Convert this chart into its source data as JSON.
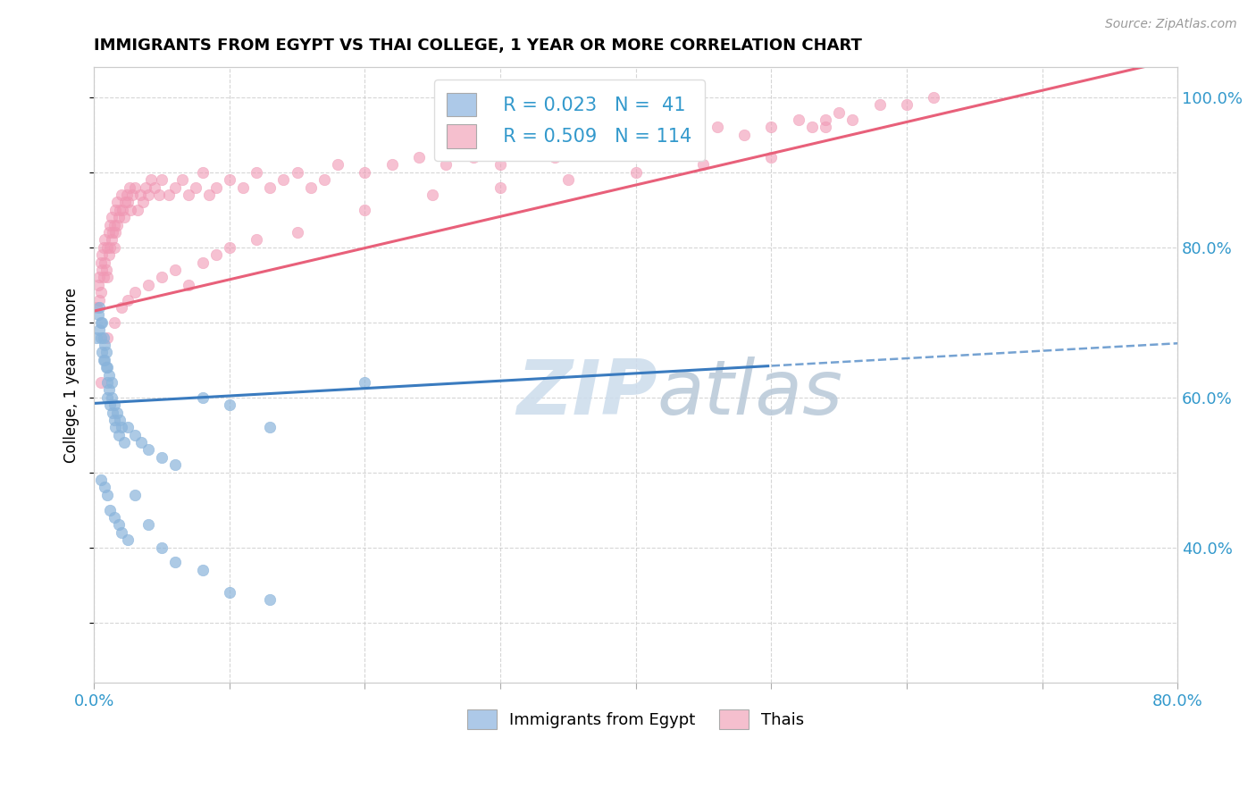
{
  "title": "IMMIGRANTS FROM EGYPT VS THAI COLLEGE, 1 YEAR OR MORE CORRELATION CHART",
  "source_text": "Source: ZipAtlas.com",
  "ylabel": "College, 1 year or more",
  "xlim": [
    0.0,
    0.8
  ],
  "ylim": [
    0.22,
    1.04
  ],
  "xticks": [
    0.0,
    0.1,
    0.2,
    0.3,
    0.4,
    0.5,
    0.6,
    0.7,
    0.8
  ],
  "xticklabels": [
    "0.0%",
    "",
    "",
    "",
    "",
    "",
    "",
    "",
    "80.0%"
  ],
  "yticks_right": [
    0.4,
    0.6,
    0.8,
    1.0
  ],
  "yticklabels_right": [
    "40.0%",
    "60.0%",
    "80.0%",
    "100.0%"
  ],
  "legend_r1": "R = 0.023",
  "legend_n1": "N =  41",
  "legend_r2": "R = 0.509",
  "legend_n2": "N = 114",
  "egypt_color": "#adc9e8",
  "egypt_scatter_color": "#8ab4db",
  "thai_color": "#f5bfce",
  "thai_scatter_color": "#f098b4",
  "egypt_line_color": "#3a7bbf",
  "thai_line_color": "#e8607a",
  "watermark_color": "#ccdcec",
  "egypt_points_x": [
    0.002,
    0.003,
    0.004,
    0.004,
    0.005,
    0.005,
    0.006,
    0.006,
    0.007,
    0.007,
    0.008,
    0.008,
    0.009,
    0.009,
    0.01,
    0.01,
    0.01,
    0.011,
    0.011,
    0.012,
    0.013,
    0.013,
    0.014,
    0.015,
    0.015,
    0.016,
    0.017,
    0.018,
    0.019,
    0.02,
    0.022,
    0.025,
    0.03,
    0.035,
    0.04,
    0.05,
    0.06,
    0.08,
    0.1,
    0.13,
    0.2
  ],
  "egypt_points_y": [
    0.68,
    0.71,
    0.69,
    0.72,
    0.7,
    0.68,
    0.66,
    0.7,
    0.65,
    0.68,
    0.67,
    0.65,
    0.64,
    0.66,
    0.62,
    0.6,
    0.64,
    0.61,
    0.63,
    0.59,
    0.6,
    0.62,
    0.58,
    0.57,
    0.59,
    0.56,
    0.58,
    0.55,
    0.57,
    0.56,
    0.54,
    0.56,
    0.55,
    0.54,
    0.53,
    0.52,
    0.51,
    0.6,
    0.59,
    0.56,
    0.62
  ],
  "egypt_extra_low_x": [
    0.005,
    0.008,
    0.01,
    0.012,
    0.015,
    0.018,
    0.02,
    0.025,
    0.03,
    0.04,
    0.05,
    0.06,
    0.08,
    0.1,
    0.13
  ],
  "egypt_extra_low_y": [
    0.49,
    0.48,
    0.47,
    0.45,
    0.44,
    0.43,
    0.42,
    0.41,
    0.47,
    0.43,
    0.4,
    0.38,
    0.37,
    0.34,
    0.33
  ],
  "thai_points_x": [
    0.002,
    0.003,
    0.004,
    0.004,
    0.005,
    0.005,
    0.006,
    0.006,
    0.007,
    0.007,
    0.008,
    0.008,
    0.009,
    0.01,
    0.01,
    0.011,
    0.011,
    0.012,
    0.012,
    0.013,
    0.013,
    0.014,
    0.015,
    0.015,
    0.016,
    0.016,
    0.017,
    0.017,
    0.018,
    0.019,
    0.02,
    0.021,
    0.022,
    0.023,
    0.024,
    0.025,
    0.026,
    0.027,
    0.028,
    0.03,
    0.032,
    0.034,
    0.036,
    0.038,
    0.04,
    0.042,
    0.045,
    0.048,
    0.05,
    0.055,
    0.06,
    0.065,
    0.07,
    0.075,
    0.08,
    0.085,
    0.09,
    0.1,
    0.11,
    0.12,
    0.13,
    0.14,
    0.15,
    0.16,
    0.17,
    0.18,
    0.2,
    0.22,
    0.24,
    0.26,
    0.28,
    0.3,
    0.32,
    0.34,
    0.36,
    0.38,
    0.4,
    0.42,
    0.44,
    0.46,
    0.48,
    0.5,
    0.52,
    0.54
  ],
  "thai_points_y": [
    0.72,
    0.75,
    0.73,
    0.76,
    0.78,
    0.74,
    0.77,
    0.79,
    0.76,
    0.8,
    0.78,
    0.81,
    0.77,
    0.76,
    0.8,
    0.79,
    0.82,
    0.8,
    0.83,
    0.81,
    0.84,
    0.82,
    0.8,
    0.83,
    0.82,
    0.85,
    0.83,
    0.86,
    0.84,
    0.85,
    0.87,
    0.85,
    0.84,
    0.86,
    0.87,
    0.86,
    0.88,
    0.85,
    0.87,
    0.88,
    0.85,
    0.87,
    0.86,
    0.88,
    0.87,
    0.89,
    0.88,
    0.87,
    0.89,
    0.87,
    0.88,
    0.89,
    0.87,
    0.88,
    0.9,
    0.87,
    0.88,
    0.89,
    0.88,
    0.9,
    0.88,
    0.89,
    0.9,
    0.88,
    0.89,
    0.91,
    0.9,
    0.91,
    0.92,
    0.91,
    0.92,
    0.91,
    0.93,
    0.92,
    0.94,
    0.93,
    0.94,
    0.95,
    0.94,
    0.96,
    0.95,
    0.96,
    0.97,
    0.96
  ],
  "thai_extra_x": [
    0.005,
    0.01,
    0.015,
    0.02,
    0.025,
    0.03,
    0.04,
    0.05,
    0.06,
    0.07,
    0.08,
    0.09,
    0.1,
    0.12,
    0.15,
    0.2,
    0.25,
    0.3,
    0.35,
    0.4,
    0.45,
    0.5,
    0.53,
    0.54,
    0.55,
    0.56,
    0.58,
    0.6,
    0.62
  ],
  "thai_extra_y": [
    0.62,
    0.68,
    0.7,
    0.72,
    0.73,
    0.74,
    0.75,
    0.76,
    0.77,
    0.75,
    0.78,
    0.79,
    0.8,
    0.81,
    0.82,
    0.85,
    0.87,
    0.88,
    0.89,
    0.9,
    0.91,
    0.92,
    0.96,
    0.97,
    0.98,
    0.97,
    0.99,
    0.99,
    1.0
  ]
}
